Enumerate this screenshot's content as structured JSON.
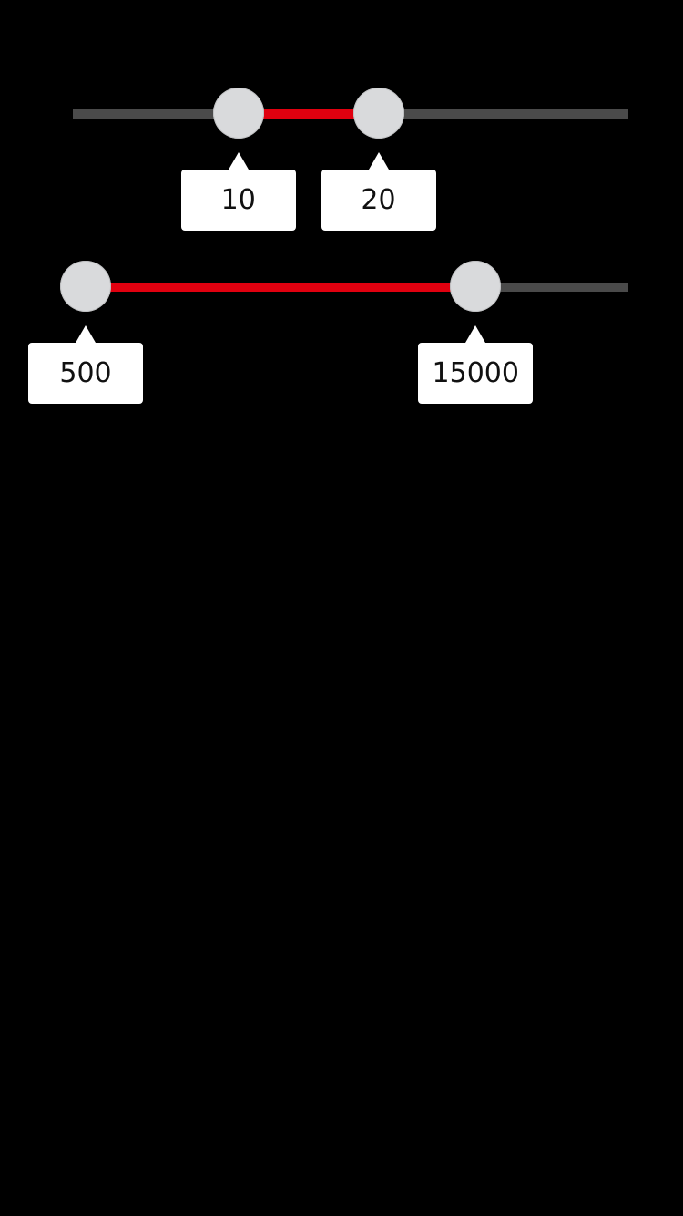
{
  "colors": {
    "background": "#000000",
    "track": "#4a4a4a",
    "range_fill": "#e0000f",
    "thumb": "#d9dadc",
    "tooltip_bg": "#ffffff",
    "tooltip_text": "#111111"
  },
  "sliders": [
    {
      "low_label": "10",
      "high_label": "20",
      "low_value": 10,
      "high_value": 20,
      "low_fraction": 0.275,
      "high_fraction": 0.55
    },
    {
      "low_label": "500",
      "high_label": "15000",
      "low_value": 500,
      "high_value": 15000,
      "low_fraction": 0.0,
      "high_fraction": 0.725
    }
  ]
}
